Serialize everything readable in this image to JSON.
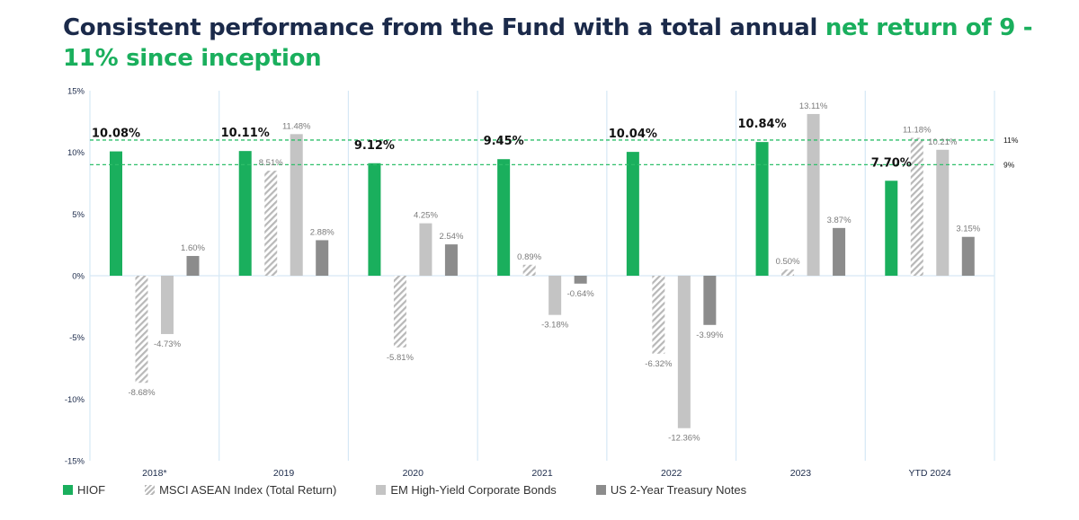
{
  "title": {
    "part1": "Consistent performance from the Fund with a total annual ",
    "part2": "net return of 9 - 11% since inception"
  },
  "colors": {
    "hiof": "#1aaf5d",
    "msci": "#b8b8b8",
    "em": "#c4c4c4",
    "ust": "#8c8c8c",
    "title": "#1b2a4a",
    "reference": "#2fbf6a"
  },
  "chart_data": {
    "type": "bar",
    "title": "Consistent performance from the Fund with a total annual net return of 9 - 11% since inception",
    "xlabel": "",
    "ylabel": "",
    "categories": [
      "2018*",
      "2019",
      "2020",
      "2021",
      "2022",
      "2023",
      "YTD 2024"
    ],
    "ylim": [
      -15,
      15
    ],
    "yticks": [
      15,
      10,
      5,
      0,
      -5,
      -10,
      -15
    ],
    "ytick_labels": [
      "15%",
      "10%",
      "5%",
      "0%",
      "-5%",
      "-10%",
      "-15%"
    ],
    "series": [
      {
        "name": "HIOF",
        "values": [
          10.08,
          10.11,
          9.12,
          9.45,
          10.04,
          10.84,
          7.7
        ],
        "labels": [
          "10.08%",
          "10.11%",
          "9.12%",
          "9.45%",
          "10.04%",
          "10.84%",
          "7.70%"
        ]
      },
      {
        "name": "MSCI ASEAN Index (Total Return)",
        "values": [
          -8.68,
          8.51,
          -5.81,
          0.89,
          -6.32,
          0.5,
          11.18
        ],
        "labels": [
          "-8.68%",
          "8.51%",
          "-5.81%",
          "0.89%",
          "-6.32%",
          "0.50%",
          "11.18%"
        ]
      },
      {
        "name": "EM High-Yield Corporate Bonds",
        "values": [
          -4.73,
          11.48,
          4.25,
          -3.18,
          -12.36,
          13.11,
          10.21
        ],
        "labels": [
          "-4.73%",
          "11.48%",
          "4.25%",
          "-3.18%",
          "-12.36%",
          "13.11%",
          "10.21%"
        ]
      },
      {
        "name": "US 2-Year Treasury Notes",
        "values": [
          1.6,
          2.88,
          2.54,
          -0.64,
          -3.99,
          3.87,
          3.15
        ],
        "labels": [
          "1.60%",
          "2.88%",
          "2.54%",
          "-0.64%",
          "-3.99%",
          "3.87%",
          "3.15%"
        ]
      }
    ],
    "reference_lines": [
      {
        "value": 11,
        "label": "11%"
      },
      {
        "value": 9,
        "label": "9%"
      }
    ],
    "legend_position": "bottom"
  }
}
